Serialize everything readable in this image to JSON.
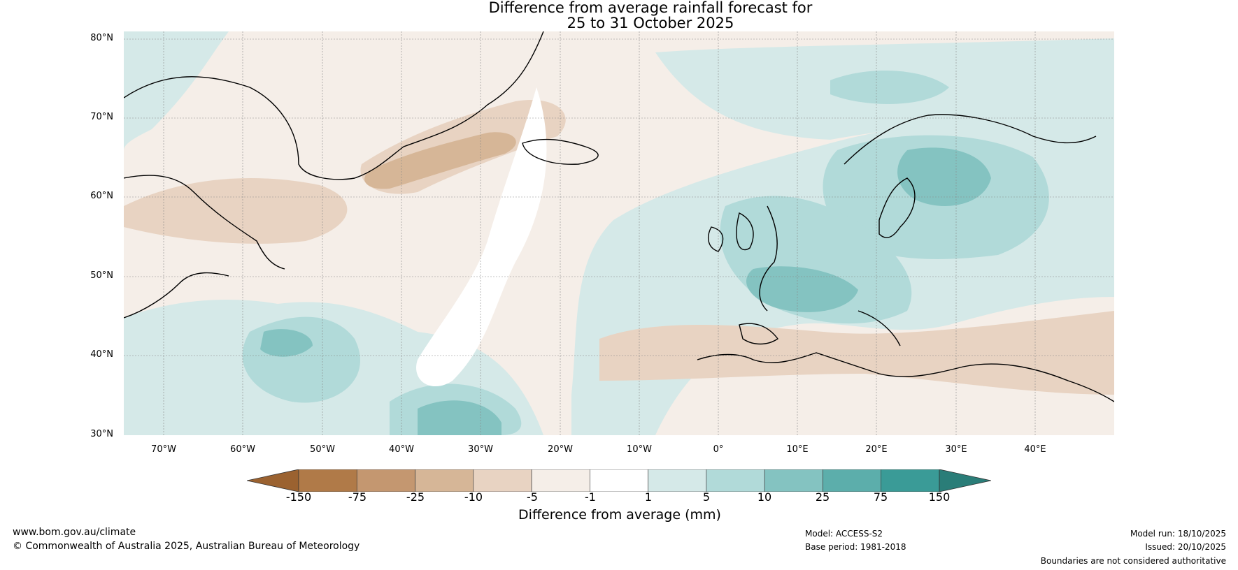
{
  "title": {
    "line1": "Difference from average rainfall forecast for",
    "line2": "25 to 31 October 2025"
  },
  "latitude_labels": [
    "80°N",
    "70°N",
    "60°N",
    "50°N",
    "40°N",
    "30°N"
  ],
  "longitude_labels": [
    "70°W",
    "60°W",
    "50°W",
    "40°W",
    "30°W",
    "20°W",
    "10°W",
    "0°",
    "10°E",
    "20°E",
    "30°E",
    "40°E"
  ],
  "colorbar": {
    "title": "Difference from average (mm)",
    "ticks": [
      "-150",
      "-75",
      "-25",
      "-10",
      "-5",
      "-1",
      "1",
      "5",
      "10",
      "25",
      "75",
      "150"
    ],
    "colors": [
      "#9b6230",
      "#b07a48",
      "#c49770",
      "#d6b697",
      "#e8d3c2",
      "#f5eee8",
      "#ffffff",
      "#d5e9e8",
      "#b1dad9",
      "#84c3c1",
      "#5caeab",
      "#3a9b97",
      "#2a7d78"
    ]
  },
  "footer": {
    "website": "www.bom.gov.au/climate",
    "copyright": "© Commonwealth of Australia 2025, Australian Bureau of Meteorology",
    "model": "Model: ACCESS-S2",
    "base_period": "Base period: 1981-2018",
    "model_run": "Model run: 18/10/2025",
    "issued": "Issued: 20/10/2025",
    "disclaimer": "Boundaries are not considered authoritative"
  }
}
